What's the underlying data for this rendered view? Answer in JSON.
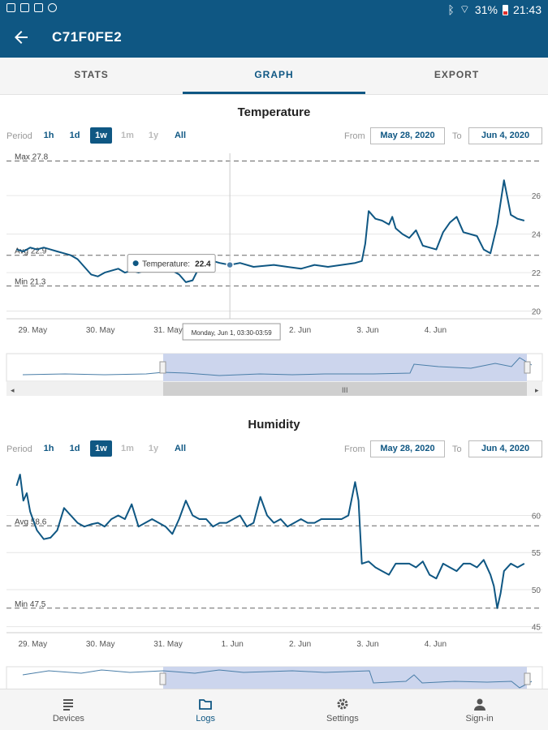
{
  "status_bar": {
    "battery": "31%",
    "time": "21:43"
  },
  "app_bar": {
    "title": "C71F0FE2"
  },
  "tabs": [
    {
      "label": "STATS",
      "active": false
    },
    {
      "label": "GRAPH",
      "active": true
    },
    {
      "label": "EXPORT",
      "active": false
    }
  ],
  "period": {
    "label": "Period",
    "options": [
      "1h",
      "1d",
      "1w",
      "1m",
      "1y",
      "All"
    ],
    "selected": "1w"
  },
  "range": {
    "from_label": "From",
    "to_label": "To",
    "from": "May 28, 2020",
    "to": "Jun 4, 2020"
  },
  "chart_data": [
    {
      "type": "line",
      "title": "Temperature",
      "x_ticks": [
        "29. May",
        "30. May",
        "31. May",
        "1. Jun",
        "2. Jun",
        "3. Jun",
        "4. Jun"
      ],
      "y_ticks": [
        20,
        22,
        24,
        26
      ],
      "ylim": [
        19.6,
        28.2
      ],
      "max_label": "Max 27.8",
      "avg_label": "Avg 22.9",
      "min_label": "Min 21.3",
      "max": 27.8,
      "avg": 22.9,
      "min": 21.3,
      "tooltip": {
        "series": "Temperature",
        "value": "22.4",
        "x": 3.15
      },
      "crosshair_label": "Monday, Jun 1, 03:30-03:59",
      "series": [
        {
          "name": "Temperature",
          "color": "#0f5783",
          "x": [
            0,
            0.1,
            0.2,
            0.3,
            0.4,
            0.5,
            0.6,
            0.7,
            0.8,
            0.9,
            1.0,
            1.1,
            1.2,
            1.3,
            1.4,
            1.5,
            1.6,
            1.7,
            1.8,
            1.9,
            2.0,
            2.1,
            2.2,
            2.3,
            2.4,
            2.5,
            2.6,
            2.7,
            2.8,
            2.9,
            3.0,
            3.15,
            3.3,
            3.5,
            3.8,
            4.0,
            4.2,
            4.4,
            4.6,
            4.8,
            5.0,
            5.1,
            5.15,
            5.2,
            5.3,
            5.4,
            5.5,
            5.55,
            5.6,
            5.7,
            5.8,
            5.9,
            6.0,
            6.1,
            6.2,
            6.3,
            6.4,
            6.5,
            6.6,
            6.7,
            6.8,
            6.9,
            7.0,
            7.1,
            7.2,
            7.3,
            7.4,
            7.5
          ],
          "y": [
            23.2,
            23.1,
            23.3,
            23.2,
            23.3,
            23.2,
            23.1,
            23.0,
            22.9,
            22.7,
            22.3,
            21.9,
            21.8,
            22.0,
            22.1,
            22.2,
            22.0,
            22.1,
            22.0,
            22.1,
            22.4,
            22.8,
            22.4,
            22.1,
            21.9,
            21.5,
            21.6,
            22.3,
            22.5,
            22.6,
            22.5,
            22.4,
            22.5,
            22.3,
            22.4,
            22.3,
            22.2,
            22.4,
            22.3,
            22.4,
            22.5,
            22.6,
            23.5,
            25.2,
            24.8,
            24.7,
            24.5,
            24.9,
            24.3,
            24.0,
            23.8,
            24.2,
            23.4,
            23.3,
            23.2,
            24.1,
            24.6,
            24.9,
            24.1,
            24.0,
            23.9,
            23.2,
            23.0,
            24.5,
            26.8,
            25.0,
            24.8,
            24.7
          ]
        }
      ]
    },
    {
      "type": "line",
      "title": "Humidity",
      "x_ticks": [
        "29. May",
        "30. May",
        "31. May",
        "1. Jun",
        "2. Jun",
        "3. Jun",
        "4. Jun"
      ],
      "y_ticks": [
        45,
        50,
        55,
        60
      ],
      "ylim": [
        44.2,
        66.5
      ],
      "avg_label": "Avg 58.6",
      "min_label": "Min 47.5",
      "avg": 58.6,
      "min": 47.5,
      "series": [
        {
          "name": "Humidity",
          "color": "#0f5783",
          "x": [
            0,
            0.05,
            0.1,
            0.15,
            0.2,
            0.3,
            0.4,
            0.5,
            0.6,
            0.7,
            0.8,
            0.9,
            1.0,
            1.1,
            1.2,
            1.3,
            1.4,
            1.5,
            1.6,
            1.7,
            1.8,
            1.9,
            2.0,
            2.1,
            2.2,
            2.3,
            2.4,
            2.5,
            2.6,
            2.7,
            2.8,
            2.9,
            3.0,
            3.1,
            3.2,
            3.3,
            3.4,
            3.5,
            3.6,
            3.7,
            3.8,
            3.9,
            4.0,
            4.1,
            4.2,
            4.3,
            4.4,
            4.5,
            4.6,
            4.7,
            4.8,
            4.9,
            5.0,
            5.05,
            5.1,
            5.2,
            5.3,
            5.4,
            5.5,
            5.6,
            5.7,
            5.8,
            5.9,
            6.0,
            6.1,
            6.2,
            6.3,
            6.4,
            6.5,
            6.6,
            6.7,
            6.8,
            6.9,
            7.0,
            7.05,
            7.1,
            7.15,
            7.2,
            7.3,
            7.4,
            7.5
          ],
          "y": [
            64.0,
            65.5,
            62.0,
            63.0,
            60.5,
            58.0,
            56.8,
            57.0,
            58.0,
            61.0,
            60.0,
            59.0,
            58.5,
            58.8,
            59.0,
            58.5,
            59.5,
            60.0,
            59.5,
            61.5,
            58.5,
            59.0,
            59.5,
            59.0,
            58.5,
            57.5,
            59.5,
            62.0,
            60.0,
            59.5,
            59.5,
            58.5,
            59.0,
            59.0,
            59.5,
            60.0,
            58.5,
            59.0,
            62.5,
            60.0,
            59.0,
            59.5,
            58.5,
            59.0,
            59.5,
            59.0,
            59.0,
            59.5,
            59.5,
            59.5,
            59.5,
            60.0,
            64.5,
            62.0,
            53.5,
            53.8,
            53.0,
            52.5,
            52.0,
            53.5,
            53.5,
            53.5,
            53.0,
            53.8,
            52.0,
            51.5,
            53.5,
            53.0,
            52.5,
            53.5,
            53.5,
            53.0,
            54.0,
            52.0,
            50.5,
            47.5,
            49.5,
            52.5,
            53.5,
            53.0,
            53.5
          ]
        }
      ]
    }
  ],
  "bottom_nav": [
    {
      "label": "Devices",
      "icon": "list-icon",
      "active": false
    },
    {
      "label": "Logs",
      "icon": "folder-icon",
      "active": true
    },
    {
      "label": "Settings",
      "icon": "gear-icon",
      "active": false
    },
    {
      "label": "Sign-in",
      "icon": "person-icon",
      "active": false
    }
  ],
  "colors": {
    "primary": "#0f5783",
    "navigator_fill": "#ccd5ed"
  }
}
